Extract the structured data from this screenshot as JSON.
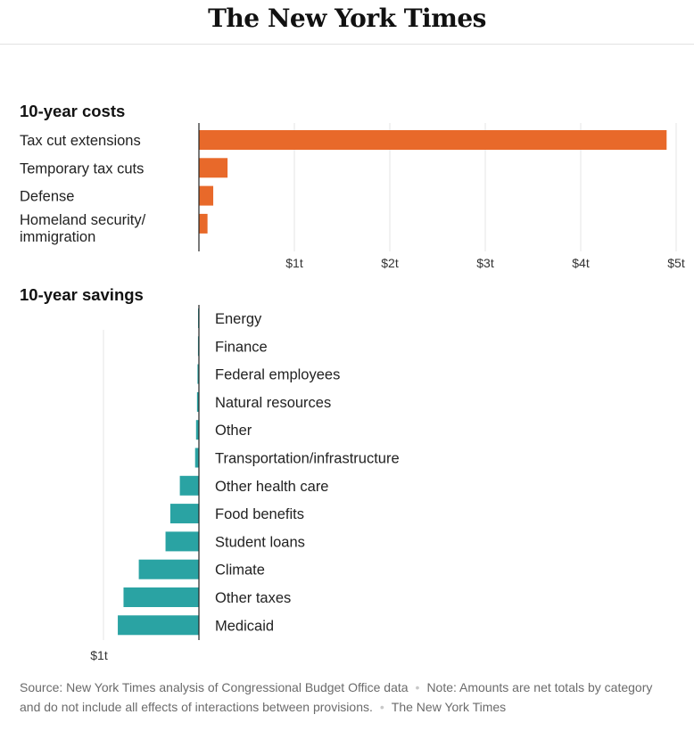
{
  "masthead": {
    "title": "The New York Times"
  },
  "chart_data": [
    {
      "type": "bar",
      "orientation": "horizontal",
      "title": "10-year costs",
      "categories": [
        [
          "Tax cut extensions"
        ],
        [
          "Temporary tax cuts"
        ],
        [
          "Defense"
        ],
        [
          "Homeland security/",
          "immigration"
        ]
      ],
      "values": [
        4.9,
        0.3,
        0.15,
        0.09
      ],
      "tick_values": [
        1,
        2,
        3,
        4,
        5
      ],
      "tick_labels": [
        "$1t",
        "$2t",
        "$3t",
        "$4t",
        "$5t"
      ],
      "xlim": [
        0,
        5
      ],
      "unit": "trillions of dollars",
      "grid": true,
      "color": "#e8692a"
    },
    {
      "type": "bar",
      "orientation": "horizontal",
      "direction": "leftward",
      "title": "10-year savings",
      "categories": [
        [
          "Energy"
        ],
        [
          "Finance"
        ],
        [
          "Federal employees"
        ],
        [
          "Natural resources"
        ],
        [
          "Other"
        ],
        [
          "Transportation/infrastructure"
        ],
        [
          "Other health care"
        ],
        [
          "Food benefits"
        ],
        [
          "Student loans"
        ],
        [
          "Climate"
        ],
        [
          "Other taxes"
        ],
        [
          "Medicaid"
        ]
      ],
      "values": [
        0.005,
        0.01,
        0.015,
        0.02,
        0.03,
        0.04,
        0.2,
        0.3,
        0.35,
        0.63,
        0.79,
        0.85
      ],
      "tick_values": [
        1
      ],
      "tick_labels": [
        "$1t"
      ],
      "xlim": [
        0,
        1
      ],
      "unit": "trillions of dollars",
      "grid": true,
      "color": "#2aa3a3"
    }
  ],
  "footer": {
    "source": "Source: New York Times analysis of Congressional Budget Office data",
    "separator": "•",
    "note": "Note: Amounts are net totals by category and do not include all effects of interactions between provisions.",
    "credit": "The New York Times"
  }
}
